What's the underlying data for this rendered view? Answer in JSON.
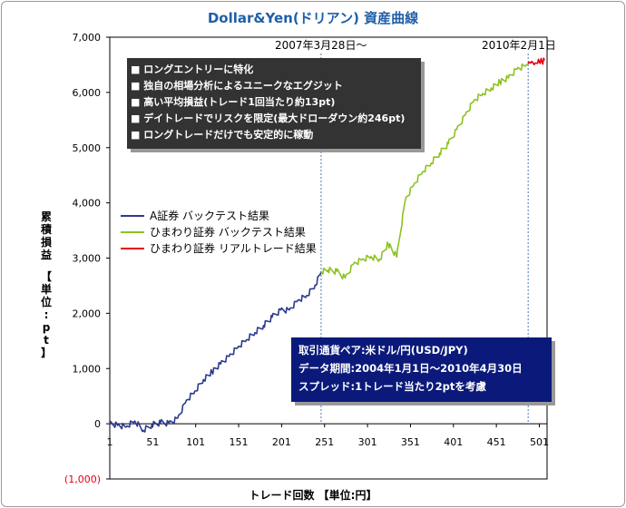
{
  "title": "Dollar&Yen(ドリアン) 資産曲線",
  "ylabel_chars": [
    "累",
    "積",
    "損",
    "益",
    "",
    "【",
    "単",
    "位",
    ":",
    "p",
    "t",
    "】"
  ],
  "xlabel": "トレード回数 【単位:円】",
  "annotations": {
    "start": "2007年3月28日～",
    "end": "2010年2月1日"
  },
  "features": [
    "■ ロングエントリーに特化",
    "■ 独自の相場分析によるユニークなエグジット",
    "■ 高い平均損益(トレード1回当たり約13pt)",
    "■ デイトレードでリスクを限定(最大ドローダウン約246pt)",
    "■ ロングトレードだけでも安定的に稼動"
  ],
  "info": [
    "取引通貨ペア:米ドル/円(USD/JPY)",
    "データ期間:2004年1月1日～2010年4月30日",
    "スプレッド:1トレード当たり2ptを考慮"
  ],
  "chart_data": {
    "type": "line",
    "title": "Dollar&Yen(ドリアン) 資産曲線",
    "xlabel": "トレード回数 【単位:円】",
    "ylabel": "累積損益 【単位:pt】",
    "xlim": [
      1,
      510
    ],
    "ylim": [
      -1000,
      7000
    ],
    "x_ticks": [
      "1",
      "51",
      "101",
      "151",
      "201",
      "251",
      "301",
      "351",
      "401",
      "451",
      "501"
    ],
    "y_ticks": [
      "(1,000)",
      "0",
      "1,000",
      "2,000",
      "3,000",
      "4,000",
      "5,000",
      "6,000",
      "7,000"
    ],
    "markers_x": [
      247,
      488
    ],
    "series": [
      {
        "name": "A証券 バックテスト結果",
        "color": "#2b3990",
        "x": [
          1,
          10,
          20,
          30,
          40,
          50,
          60,
          70,
          80,
          90,
          100,
          110,
          120,
          130,
          140,
          150,
          160,
          170,
          180,
          190,
          200,
          210,
          220,
          230,
          240,
          247
        ],
        "y": [
          0,
          -30,
          -60,
          50,
          -120,
          -20,
          20,
          10,
          100,
          420,
          590,
          800,
          940,
          1080,
          1220,
          1380,
          1520,
          1650,
          1780,
          1930,
          2060,
          2060,
          2240,
          2320,
          2510,
          2750
        ]
      },
      {
        "name": "ひまわり証券 バックテスト結果",
        "color": "#8dc21f",
        "x": [
          247,
          255,
          265,
          275,
          285,
          295,
          305,
          315,
          325,
          335,
          345,
          355,
          365,
          375,
          385,
          395,
          405,
          415,
          425,
          435,
          445,
          455,
          465,
          475,
          485,
          488
        ],
        "y": [
          2750,
          2780,
          2760,
          2640,
          2900,
          2980,
          3030,
          2980,
          3260,
          3020,
          4050,
          4330,
          4560,
          4720,
          4900,
          5070,
          5330,
          5600,
          5860,
          5980,
          6080,
          6190,
          6260,
          6420,
          6480,
          6520
        ]
      },
      {
        "name": "ひまわり証券 リアルトレード結果",
        "color": "#e60012",
        "x": [
          488,
          492,
          496,
          500,
          504,
          507
        ],
        "y": [
          6520,
          6560,
          6530,
          6600,
          6560,
          6580
        ]
      }
    ]
  }
}
